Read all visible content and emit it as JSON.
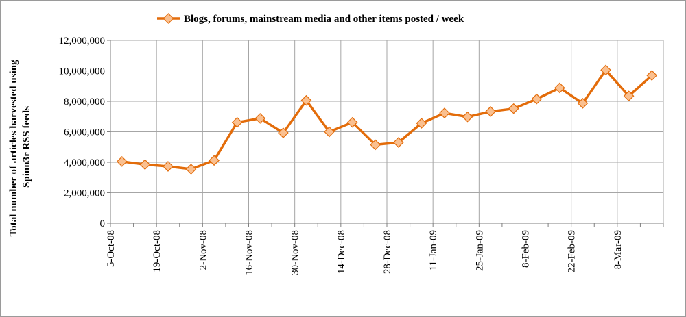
{
  "chart_data": {
    "type": "line",
    "title": "",
    "xlabel": "",
    "ylabel_lines": [
      "Total number of articles harvested using",
      "Spinn3r RSS feeds"
    ],
    "ylim": [
      0,
      12000000
    ],
    "y_ticks": [
      0,
      2000000,
      4000000,
      6000000,
      8000000,
      10000000,
      12000000
    ],
    "y_tick_labels": [
      "0",
      "2,000,000",
      "4,000,000",
      "6,000,000",
      "8,000,000",
      "10,000,000",
      "12,000,000"
    ],
    "x_tick_labels": [
      "5-Oct-08",
      "19-Oct-08",
      "2-Nov-08",
      "16-Nov-08",
      "30-Nov-08",
      "14-Dec-08",
      "28-Dec-08",
      "11-Jan-09",
      "25-Jan-09",
      "8-Feb-09",
      "22-Feb-09",
      "8-Mar-09"
    ],
    "grid": true,
    "legend_position": "top",
    "colors": {
      "line": "#E36C0A",
      "marker_fill": "#FAC090",
      "marker_stroke": "#E36C0A",
      "grid": "#a6a6a6"
    },
    "x": [
      "5-Oct-08",
      "12-Oct-08",
      "19-Oct-08",
      "26-Oct-08",
      "2-Nov-08",
      "9-Nov-08",
      "16-Nov-08",
      "23-Nov-08",
      "30-Nov-08",
      "7-Dec-08",
      "14-Dec-08",
      "21-Dec-08",
      "28-Dec-08",
      "4-Jan-09",
      "11-Jan-09",
      "18-Jan-09",
      "25-Jan-09",
      "1-Feb-09",
      "8-Feb-09",
      "15-Feb-09",
      "22-Feb-09",
      "1-Mar-09",
      "8-Mar-09",
      "15-Mar-09"
    ],
    "series": [
      {
        "name": "Blogs, forums, mainstream media and other items posted / week",
        "values": [
          4050000,
          3850000,
          3730000,
          3550000,
          4120000,
          6620000,
          6880000,
          5930000,
          8060000,
          6000000,
          6620000,
          5150000,
          5300000,
          6560000,
          7230000,
          6980000,
          7330000,
          7520000,
          8150000,
          8880000,
          7870000,
          10050000,
          8350000,
          9700000
        ]
      }
    ]
  }
}
